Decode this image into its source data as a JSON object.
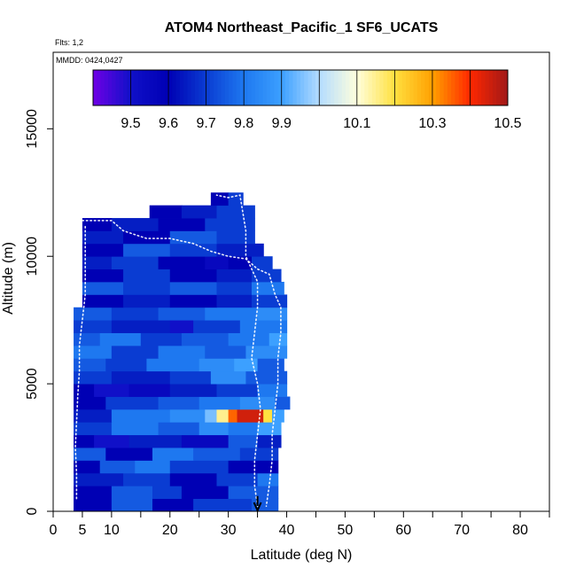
{
  "chart_data": {
    "type": "heatmap",
    "title": "ATOM4 Northeast_Pacific_1 SF6_UCATS",
    "annotations": [
      "Flts: 1,2",
      "MMDD: 0424,0427"
    ],
    "xlabel": "Latitude (deg N)",
    "ylabel": "Altitude (m)",
    "xlim": [
      0,
      85
    ],
    "ylim": [
      0,
      18000
    ],
    "x_ticks": [
      0,
      5,
      10,
      20,
      30,
      40,
      50,
      60,
      70,
      80
    ],
    "y_ticks": [
      0,
      5000,
      10000,
      15000
    ],
    "grid": false,
    "colorbar": {
      "placement": "top-inside",
      "range": [
        9.4,
        10.5
      ],
      "tick_values": [
        9.5,
        9.6,
        9.7,
        9.8,
        9.9,
        10.1,
        10.3,
        10.5
      ],
      "tick_labels": [
        "9.5",
        "9.6",
        "9.7",
        "9.8",
        "9.9",
        "10.1",
        "10.3",
        "10.5"
      ],
      "boundaries": [
        9.4,
        9.5,
        9.6,
        9.7,
        9.8,
        9.9,
        10.0,
        10.1,
        10.2,
        10.3,
        10.4,
        10.5
      ],
      "colors": [
        "#6f00e6",
        "#1010c8",
        "#0000b4",
        "#0a3cd2",
        "#1e78f0",
        "#3ca0ff",
        "#b4dcff",
        "#ffffdc",
        "#ffe040",
        "#ffa000",
        "#ff2800",
        "#a01818"
      ]
    },
    "data_extent": {
      "lat_range": [
        3.5,
        40.5
      ],
      "alt_range": [
        0,
        12500
      ],
      "top_profile": [
        {
          "lat": 3.5,
          "alt": 11500
        },
        {
          "lat": 16.5,
          "alt": 11500
        },
        {
          "lat": 16.5,
          "alt": 12000
        },
        {
          "lat": 27,
          "alt": 12000
        },
        {
          "lat": 27,
          "alt": 12500
        },
        {
          "lat": 32.5,
          "alt": 12500
        },
        {
          "lat": 32.5,
          "alt": 11500
        },
        {
          "lat": 34.5,
          "alt": 11500
        },
        {
          "lat": 36,
          "alt": 10500
        },
        {
          "lat": 37.5,
          "alt": 9500
        },
        {
          "lat": 39,
          "alt": 8500
        },
        {
          "lat": 40.5,
          "alt": 5500
        }
      ]
    },
    "layers": [
      {
        "alt": [
          0,
          500
        ],
        "lat": [
          3.5,
          38.5
        ],
        "segments": [
          [
            3.5,
            9.6
          ],
          [
            10,
            9.75
          ],
          [
            17,
            9.6
          ],
          [
            24,
            9.7
          ],
          [
            34,
            9.75
          ]
        ]
      },
      {
        "alt": [
          500,
          1000
        ],
        "lat": [
          3.5,
          38.5
        ],
        "segments": [
          [
            3.5,
            9.6
          ],
          [
            10,
            9.75
          ],
          [
            17,
            9.7
          ],
          [
            22,
            9.6
          ],
          [
            30,
            9.75
          ]
        ]
      },
      {
        "alt": [
          1000,
          1500
        ],
        "lat": [
          3.5,
          38.5
        ],
        "segments": [
          [
            3.5,
            9.65
          ],
          [
            12,
            9.7
          ],
          [
            20,
            9.6
          ],
          [
            28,
            9.7
          ],
          [
            35,
            9.8
          ]
        ]
      },
      {
        "alt": [
          1500,
          2000
        ],
        "lat": [
          3.5,
          38.5
        ],
        "segments": [
          [
            3.5,
            9.6
          ],
          [
            8,
            9.75
          ],
          [
            14,
            9.8
          ],
          [
            20,
            9.7
          ],
          [
            30,
            9.6
          ]
        ]
      },
      {
        "alt": [
          2000,
          2500
        ],
        "lat": [
          3.5,
          38.5
        ],
        "segments": [
          [
            3.5,
            9.75
          ],
          [
            9,
            9.6
          ],
          [
            17,
            9.8
          ],
          [
            24,
            9.75
          ],
          [
            32,
            9.7
          ]
        ]
      },
      {
        "alt": [
          2500,
          3000
        ],
        "lat": [
          3.5,
          39
        ],
        "segments": [
          [
            3.5,
            9.6
          ],
          [
            7,
            9.5
          ],
          [
            13,
            9.65
          ],
          [
            22,
            9.55
          ],
          [
            30,
            9.75
          ],
          [
            35,
            9.65
          ]
        ]
      },
      {
        "alt": [
          3000,
          3500
        ],
        "lat": [
          3.5,
          39
        ],
        "segments": [
          [
            3.5,
            9.7
          ],
          [
            10,
            9.8
          ],
          [
            18,
            9.75
          ],
          [
            25,
            9.85
          ],
          [
            30,
            9.8
          ],
          [
            35,
            9.9
          ]
        ]
      },
      {
        "alt": [
          3500,
          4000
        ],
        "lat": [
          3.5,
          39.5
        ],
        "segments": [
          [
            3.5,
            9.65
          ],
          [
            10,
            9.8
          ],
          [
            20,
            9.85
          ],
          [
            26,
            9.95
          ],
          [
            28,
            10.15
          ],
          [
            30,
            10.35
          ],
          [
            31.5,
            10.45
          ],
          [
            36,
            10.2
          ],
          [
            37.5,
            9.9
          ]
        ]
      },
      {
        "alt": [
          4000,
          4500
        ],
        "lat": [
          3.5,
          40.5
        ],
        "segments": [
          [
            3.5,
            9.6
          ],
          [
            9,
            9.7
          ],
          [
            18,
            9.75
          ],
          [
            25,
            9.8
          ],
          [
            32,
            9.85
          ],
          [
            38,
            9.75
          ]
        ]
      },
      {
        "alt": [
          4500,
          5000
        ],
        "lat": [
          3.5,
          40
        ],
        "segments": [
          [
            3.5,
            9.6
          ],
          [
            7,
            9.5
          ],
          [
            13,
            9.55
          ],
          [
            20,
            9.65
          ],
          [
            28,
            9.7
          ],
          [
            35,
            9.8
          ]
        ]
      },
      {
        "alt": [
          5000,
          5500
        ],
        "lat": [
          3.5,
          40
        ],
        "segments": [
          [
            3.5,
            9.7
          ],
          [
            10,
            9.65
          ],
          [
            20,
            9.7
          ],
          [
            27,
            9.85
          ],
          [
            33,
            9.75
          ]
        ]
      },
      {
        "alt": [
          5500,
          6000
        ],
        "lat": [
          3.5,
          39.5
        ],
        "segments": [
          [
            3.5,
            9.75
          ],
          [
            9,
            9.7
          ],
          [
            16,
            9.8
          ],
          [
            25,
            9.85
          ],
          [
            31,
            9.9
          ],
          [
            35,
            9.75
          ]
        ]
      },
      {
        "alt": [
          6000,
          6500
        ],
        "lat": [
          3.5,
          40
        ],
        "segments": [
          [
            3.5,
            9.8
          ],
          [
            10,
            9.7
          ],
          [
            18,
            9.8
          ],
          [
            26,
            9.75
          ],
          [
            33,
            9.85
          ]
        ]
      },
      {
        "alt": [
          6500,
          7000
        ],
        "lat": [
          3.5,
          40
        ],
        "segments": [
          [
            3.5,
            9.75
          ],
          [
            8,
            9.8
          ],
          [
            15,
            9.7
          ],
          [
            22,
            9.75
          ],
          [
            30,
            9.8
          ],
          [
            37,
            9.9
          ]
        ]
      },
      {
        "alt": [
          7000,
          7500
        ],
        "lat": [
          3.5,
          40
        ],
        "segments": [
          [
            3.5,
            9.7
          ],
          [
            10,
            9.65
          ],
          [
            20,
            9.5
          ],
          [
            24,
            9.7
          ],
          [
            32,
            9.8
          ]
        ]
      },
      {
        "alt": [
          7500,
          8000
        ],
        "lat": [
          3.5,
          40
        ],
        "segments": [
          [
            3.5,
            9.75
          ],
          [
            10,
            9.7
          ],
          [
            18,
            9.75
          ],
          [
            26,
            9.8
          ],
          [
            35,
            9.85
          ]
        ]
      },
      {
        "alt": [
          8000,
          8500
        ],
        "lat": [
          5,
          40
        ],
        "segments": [
          [
            5,
            9.6
          ],
          [
            12,
            9.65
          ],
          [
            20,
            9.6
          ],
          [
            28,
            9.65
          ],
          [
            34,
            9.7
          ]
        ]
      },
      {
        "alt": [
          8500,
          9000
        ],
        "lat": [
          5,
          39.5
        ],
        "segments": [
          [
            5,
            9.75
          ],
          [
            12,
            9.7
          ],
          [
            20,
            9.75
          ],
          [
            28,
            9.7
          ],
          [
            34,
            9.8
          ]
        ]
      },
      {
        "alt": [
          9000,
          9500
        ],
        "lat": [
          5,
          39
        ],
        "segments": [
          [
            5,
            9.6
          ],
          [
            12,
            9.7
          ],
          [
            20,
            9.6
          ],
          [
            28,
            9.65
          ],
          [
            34,
            9.7
          ]
        ]
      },
      {
        "alt": [
          9500,
          10000
        ],
        "lat": [
          5,
          37.5
        ],
        "segments": [
          [
            5,
            9.65
          ],
          [
            10,
            9.7
          ],
          [
            18,
            9.6
          ],
          [
            26,
            9.55
          ],
          [
            30,
            9.6
          ],
          [
            34,
            9.7
          ]
        ]
      },
      {
        "alt": [
          10000,
          10500
        ],
        "lat": [
          5,
          36
        ],
        "segments": [
          [
            5,
            9.6
          ],
          [
            12,
            9.75
          ],
          [
            20,
            9.7
          ],
          [
            28,
            9.65
          ]
        ]
      },
      {
        "alt": [
          10500,
          11000
        ],
        "lat": [
          5,
          34.5
        ],
        "segments": [
          [
            5,
            9.65
          ],
          [
            12,
            9.6
          ],
          [
            20,
            9.75
          ],
          [
            28,
            9.7
          ]
        ]
      },
      {
        "alt": [
          11000,
          11500
        ],
        "lat": [
          5,
          34.5
        ],
        "segments": [
          [
            5,
            9.6
          ],
          [
            10,
            9.65
          ],
          [
            18,
            9.6
          ],
          [
            26,
            9.7
          ]
        ]
      },
      {
        "alt": [
          11500,
          12000
        ],
        "lat": [
          16.5,
          34.5
        ],
        "segments": [
          [
            16.5,
            9.6
          ],
          [
            22,
            9.65
          ],
          [
            28,
            9.7
          ]
        ]
      },
      {
        "alt": [
          12000,
          12500
        ],
        "lat": [
          27,
          32.5
        ],
        "segments": [
          [
            27,
            9.6
          ],
          [
            30,
            9.7
          ]
        ]
      }
    ],
    "flight_tracks": [
      {
        "name": "",
        "points": [
          [
            5,
            11400
          ],
          [
            10,
            11400
          ],
          [
            12,
            11000
          ],
          [
            16,
            10700
          ],
          [
            20,
            10700
          ],
          [
            24,
            10500
          ],
          [
            27,
            10200
          ],
          [
            30,
            10000
          ],
          [
            33,
            9900
          ],
          [
            35,
            9500
          ],
          [
            37,
            9300
          ],
          [
            38,
            8500
          ],
          [
            39,
            8000
          ],
          [
            39,
            7000
          ],
          [
            38.5,
            6000
          ],
          [
            38.5,
            5000
          ],
          [
            38,
            4000
          ],
          [
            37.5,
            3000
          ],
          [
            37.5,
            2000
          ],
          [
            37,
            1000
          ],
          [
            36.5,
            200
          ]
        ]
      },
      {
        "name": "",
        "points": [
          [
            35,
            200
          ],
          [
            34.5,
            1000
          ],
          [
            34.5,
            2000
          ],
          [
            35,
            3000
          ],
          [
            35.5,
            4000
          ],
          [
            35,
            5000
          ],
          [
            34,
            6000
          ],
          [
            34.5,
            7000
          ],
          [
            35,
            8000
          ],
          [
            35,
            9000
          ],
          [
            33,
            10000
          ],
          [
            33,
            11000
          ],
          [
            32,
            12400
          ],
          [
            30,
            12300
          ],
          [
            28,
            12400
          ]
        ]
      },
      {
        "name": "",
        "points": [
          [
            4,
            500
          ],
          [
            4,
            1500
          ],
          [
            3.8,
            2500
          ],
          [
            4,
            3500
          ],
          [
            4.2,
            4500
          ],
          [
            4.5,
            5500
          ],
          [
            4.5,
            6500
          ],
          [
            5,
            7500
          ],
          [
            5.5,
            8500
          ],
          [
            5.5,
            9500
          ],
          [
            5.5,
            10500
          ],
          [
            5.5,
            11200
          ]
        ]
      }
    ],
    "marker": {
      "type": "arrow-down",
      "lat": 35,
      "alt_from": 600,
      "alt_to": 0
    }
  }
}
